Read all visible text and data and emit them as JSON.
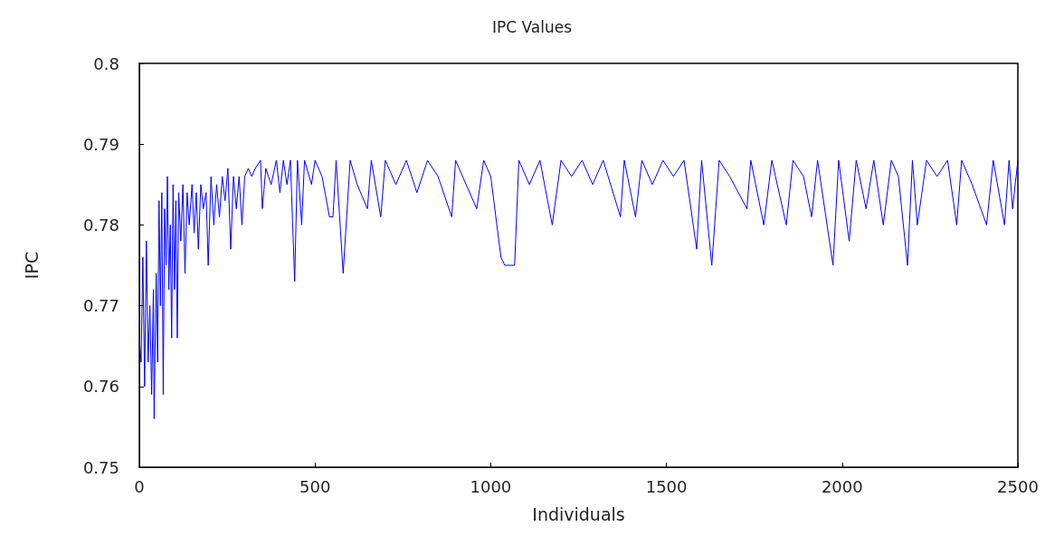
{
  "chart_data": {
    "type": "line",
    "title": "IPC Values",
    "xlabel": "Individuals",
    "ylabel": "IPC",
    "xlim": [
      0,
      2500
    ],
    "xticks": [
      0,
      500,
      1000,
      1500,
      2000,
      2500
    ],
    "ylim": [
      0.75,
      0.8
    ],
    "yticks": [
      0.75,
      0.76,
      0.77,
      0.78,
      0.79,
      0.8
    ],
    "grid": false,
    "marker": "none",
    "line_style": "solid",
    "series": [
      {
        "color": "#0000ff",
        "x": [
          0,
          5,
          10,
          15,
          20,
          25,
          30,
          35,
          40,
          42,
          48,
          52,
          56,
          60,
          64,
          68,
          72,
          76,
          80,
          84,
          88,
          92,
          96,
          100,
          104,
          108,
          112,
          118,
          124,
          130,
          136,
          142,
          150,
          156,
          162,
          168,
          175,
          182,
          190,
          196,
          204,
          212,
          220,
          228,
          236,
          244,
          252,
          260,
          268,
          276,
          284,
          292,
          300,
          310,
          320,
          330,
          345,
          350,
          360,
          375,
          390,
          400,
          410,
          420,
          430,
          442,
          450,
          462,
          470,
          490,
          500,
          520,
          541,
          551,
          560,
          580,
          600,
          620,
          649,
          660,
          687,
          700,
          730,
          760,
          790,
          820,
          850,
          889,
          900,
          930,
          960,
          980,
          1000,
          1029,
          1040,
          1068,
          1080,
          1110,
          1140,
          1175,
          1200,
          1230,
          1260,
          1290,
          1320,
          1369,
          1380,
          1412,
          1430,
          1460,
          1490,
          1520,
          1550,
          1586,
          1600,
          1629,
          1650,
          1680,
          1729,
          1740,
          1777,
          1800,
          1841,
          1860,
          1890,
          1913,
          1930,
          1974,
          1990,
          2020,
          2040,
          2068,
          2090,
          2117,
          2140,
          2160,
          2186,
          2200,
          2214,
          2240,
          2270,
          2300,
          2326,
          2340,
          2370,
          2411,
          2430,
          2462,
          2475,
          2485,
          2500
        ],
        "values": [
          0.766,
          0.763,
          0.776,
          0.76,
          0.778,
          0.763,
          0.77,
          0.759,
          0.772,
          0.756,
          0.774,
          0.763,
          0.783,
          0.77,
          0.784,
          0.759,
          0.782,
          0.775,
          0.786,
          0.772,
          0.78,
          0.766,
          0.785,
          0.772,
          0.783,
          0.766,
          0.784,
          0.778,
          0.785,
          0.774,
          0.784,
          0.78,
          0.785,
          0.779,
          0.784,
          0.777,
          0.785,
          0.782,
          0.784,
          0.775,
          0.786,
          0.78,
          0.785,
          0.781,
          0.786,
          0.783,
          0.787,
          0.777,
          0.786,
          0.782,
          0.786,
          0.78,
          0.786,
          0.787,
          0.786,
          0.787,
          0.788,
          0.782,
          0.787,
          0.785,
          0.788,
          0.784,
          0.788,
          0.785,
          0.788,
          0.773,
          0.788,
          0.78,
          0.788,
          0.785,
          0.788,
          0.786,
          0.781,
          0.781,
          0.788,
          0.774,
          0.788,
          0.785,
          0.782,
          0.788,
          0.781,
          0.788,
          0.785,
          0.788,
          0.784,
          0.788,
          0.786,
          0.781,
          0.788,
          0.785,
          0.782,
          0.788,
          0.786,
          0.776,
          0.775,
          0.775,
          0.788,
          0.785,
          0.788,
          0.78,
          0.788,
          0.786,
          0.788,
          0.785,
          0.788,
          0.781,
          0.788,
          0.781,
          0.788,
          0.785,
          0.788,
          0.786,
          0.788,
          0.777,
          0.788,
          0.775,
          0.788,
          0.786,
          0.782,
          0.788,
          0.78,
          0.788,
          0.78,
          0.788,
          0.786,
          0.781,
          0.788,
          0.775,
          0.788,
          0.778,
          0.788,
          0.782,
          0.788,
          0.78,
          0.788,
          0.786,
          0.775,
          0.788,
          0.78,
          0.788,
          0.786,
          0.788,
          0.78,
          0.788,
          0.785,
          0.78,
          0.788,
          0.78,
          0.788,
          0.782,
          0.788
        ]
      }
    ]
  }
}
